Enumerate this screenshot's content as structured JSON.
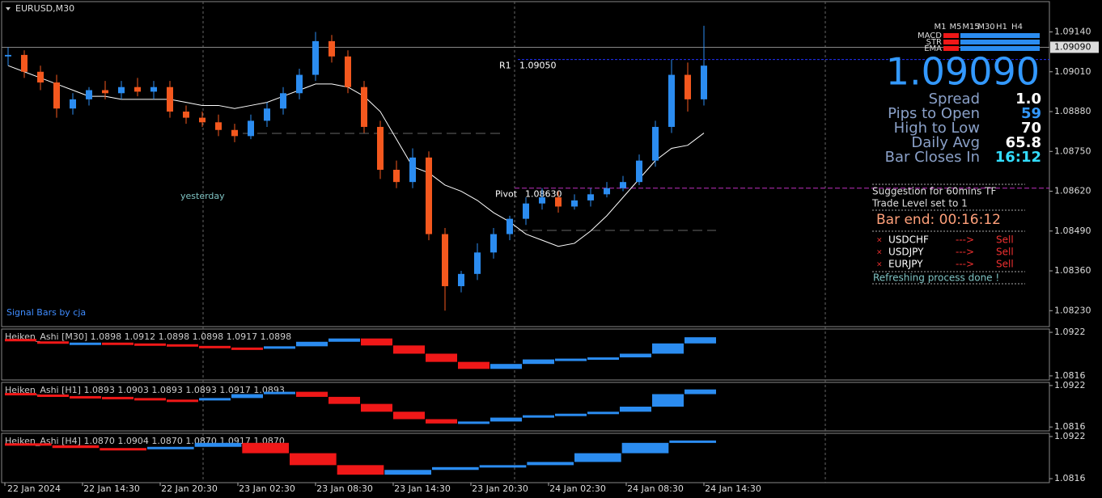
{
  "chart_data": [
    {
      "type": "candlestick",
      "title": "EURUSD,M30",
      "x_labels": [
        "22 Jan 2024",
        "22 Jan 14:30",
        "22 Jan 20:30",
        "23 Jan 02:30",
        "23 Jan 08:30",
        "23 Jan 14:30",
        "23 Jan 20:30",
        "24 Jan 02:30",
        "24 Jan 08:30",
        "24 Jan 14:30"
      ],
      "open": [
        1.0906,
        1.09065,
        1.0901,
        1.08975,
        1.0889,
        1.0892,
        1.0895,
        1.0894,
        1.0896,
        1.08945,
        1.0896,
        1.0888,
        1.0886,
        1.08845,
        1.0882,
        1.088,
        1.0885,
        1.0889,
        1.0894,
        1.09,
        1.0911,
        1.0906,
        1.0896,
        1.0883,
        1.0869,
        1.0865,
        1.0873,
        1.0848,
        1.0831,
        1.0835,
        1.0842,
        1.0848,
        1.0853,
        1.0858,
        1.086,
        1.0857,
        1.0859,
        1.0861,
        1.0863,
        1.0865,
        1.0872,
        1.0883,
        1.09,
        1.0892
      ],
      "high": [
        1.0909,
        1.0908,
        1.0903,
        1.09,
        1.0894,
        1.0896,
        1.0898,
        1.0898,
        1.0899,
        1.0898,
        1.0898,
        1.089,
        1.0888,
        1.0887,
        1.0884,
        1.0887,
        1.0891,
        1.0896,
        1.0902,
        1.0914,
        1.0913,
        1.0908,
        1.0898,
        1.0885,
        1.0872,
        1.0876,
        1.0875,
        1.085,
        1.0836,
        1.0845,
        1.085,
        1.0854,
        1.086,
        1.0863,
        1.0862,
        1.0861,
        1.0863,
        1.0865,
        1.0867,
        1.0874,
        1.0885,
        1.0905,
        1.0904,
        1.0916
      ],
      "low": [
        1.0903,
        1.0899,
        1.0895,
        1.0886,
        1.0887,
        1.089,
        1.0892,
        1.0892,
        1.0893,
        1.0892,
        1.0886,
        1.0884,
        1.0883,
        1.088,
        1.0878,
        1.0879,
        1.0883,
        1.0887,
        1.0892,
        1.0898,
        1.0904,
        1.0894,
        1.0881,
        1.0866,
        1.0863,
        1.0863,
        1.0846,
        1.0823,
        1.0829,
        1.0833,
        1.084,
        1.0846,
        1.0851,
        1.0856,
        1.0855,
        1.0856,
        1.0857,
        1.086,
        1.0862,
        1.0864,
        1.087,
        1.0881,
        1.0888,
        1.089
      ],
      "close": [
        1.09065,
        1.0901,
        1.08975,
        1.0889,
        1.0892,
        1.0895,
        1.0894,
        1.0896,
        1.08945,
        1.0896,
        1.0888,
        1.0886,
        1.08845,
        1.0882,
        1.088,
        1.0885,
        1.0889,
        1.0894,
        1.09,
        1.0911,
        1.0906,
        1.0896,
        1.0883,
        1.0869,
        1.0865,
        1.0873,
        1.0848,
        1.0831,
        1.0835,
        1.0842,
        1.0848,
        1.0853,
        1.0858,
        1.086,
        1.0857,
        1.0859,
        1.0861,
        1.0863,
        1.0865,
        1.0872,
        1.0883,
        1.09,
        1.0892,
        1.0903
      ],
      "ma": [
        1.0903,
        1.0901,
        1.0899,
        1.0897,
        1.0895,
        1.0893,
        1.0893,
        1.0892,
        1.0892,
        1.0892,
        1.0892,
        1.0891,
        1.089,
        1.089,
        1.0889,
        1.089,
        1.0891,
        1.0893,
        1.0895,
        1.0897,
        1.0897,
        1.0896,
        1.0893,
        1.0888,
        1.0879,
        1.087,
        1.0868,
        1.0864,
        1.0862,
        1.0859,
        1.0855,
        1.0852,
        1.0848,
        1.0846,
        1.0844,
        1.0845,
        1.0849,
        1.0854,
        1.086,
        1.0866,
        1.0872,
        1.0876,
        1.0877,
        1.0881
      ],
      "up_color": "#2b8cf0",
      "down_color": "#f4581e",
      "ma_color": "#ffffff",
      "ylim": [
        1.08178,
        1.09239
      ],
      "yticks": [
        {
          "value": 1.0914,
          "label": "1.09140"
        },
        {
          "value": 1.0901,
          "label": "1.09010"
        },
        {
          "value": 1.0888,
          "label": "1.08880"
        },
        {
          "value": 1.0875,
          "label": "1.08750"
        },
        {
          "value": 1.0862,
          "label": "1.08620"
        },
        {
          "value": 1.0849,
          "label": "1.08490"
        },
        {
          "value": 1.0836,
          "label": "1.08360"
        },
        {
          "value": 1.0823,
          "label": "1.08230"
        }
      ],
      "current_price": {
        "value": 1.0909,
        "label": "1.09090"
      },
      "r1": {
        "name": "R1",
        "value": 1.0905,
        "label": "1.09050"
      },
      "pivot": {
        "name": "Pivot",
        "value": 1.0863,
        "label": "1.08630"
      },
      "annotations": [
        "yesterday",
        "Signal Bars by cja"
      ]
    },
    {
      "type": "blocks",
      "title": "Heiken_Ashi [M30]  1.0898 1.0912 1.0898 1.0898 1.0917 1.0898",
      "values": [
        1.0906,
        1.09,
        1.0896,
        1.0897,
        1.0895,
        1.0893,
        1.0889,
        1.0885,
        1.0882,
        1.0888,
        1.0899,
        1.0907,
        1.089,
        1.087,
        1.085,
        1.0833,
        1.0845,
        1.0856,
        1.0858,
        1.0861,
        1.087,
        1.0895,
        1.091
      ],
      "up_color": "#2b8cf0",
      "down_color": "#f01818",
      "ylim": [
        1.0806,
        1.093
      ],
      "yticks": [
        1.0922,
        1.0816
      ]
    },
    {
      "type": "blocks",
      "title": "Heiken_Ashi [H1]  1.0893 1.0903 1.0893 1.0893 1.0917 1.0893",
      "values": [
        1.0903,
        1.0899,
        1.0895,
        1.0893,
        1.089,
        1.0886,
        1.0884,
        1.089,
        1.09,
        1.0906,
        1.0893,
        1.0875,
        1.0855,
        1.0836,
        1.0825,
        1.083,
        1.084,
        1.0846,
        1.085,
        1.0855,
        1.0868,
        1.09,
        1.0912
      ],
      "up_color": "#2b8cf0",
      "down_color": "#f01818",
      "ylim": [
        1.0806,
        1.093
      ],
      "yticks": [
        1.0922,
        1.0816
      ]
    },
    {
      "type": "blocks",
      "title": "Heiken_Ashi [H4]  1.0870 1.0904 1.0870 1.0870 1.0917 1.0870",
      "values": [
        1.0905,
        1.09,
        1.0893,
        1.089,
        1.0896,
        1.0906,
        1.088,
        1.085,
        1.0826,
        1.0838,
        1.0845,
        1.085,
        1.0858,
        1.088,
        1.0906,
        1.0912
      ],
      "up_color": "#2b8cf0",
      "down_color": "#f01818",
      "ylim": [
        1.0806,
        1.093
      ],
      "yticks": [
        1.0922,
        1.0816
      ]
    }
  ],
  "info_panel": {
    "timeframes": [
      "M1",
      "M5",
      "M15",
      "M30",
      "H1",
      "H4"
    ],
    "indicators": [
      "MACD",
      "STR",
      "EMA"
    ],
    "price": "1.09090",
    "stats": [
      [
        "Spread",
        "1.0"
      ],
      [
        "Pips to Open",
        "59"
      ],
      [
        "High to Low",
        "70"
      ],
      [
        "Daily Avg",
        "65.8"
      ],
      [
        "Bar Closes In",
        "16:12"
      ]
    ],
    "suggestion": "Suggestion for 60mins TF",
    "trade_level": "Trade Level set to 1",
    "bar_end": "Bar end: 00:16:12",
    "signals": [
      [
        "USDCHF",
        "--->",
        "Sell"
      ],
      [
        "USDJPY",
        "--->",
        "Sell"
      ],
      [
        "EURJPY",
        "--->",
        "Sell"
      ]
    ],
    "status": "Refreshing process done !"
  }
}
